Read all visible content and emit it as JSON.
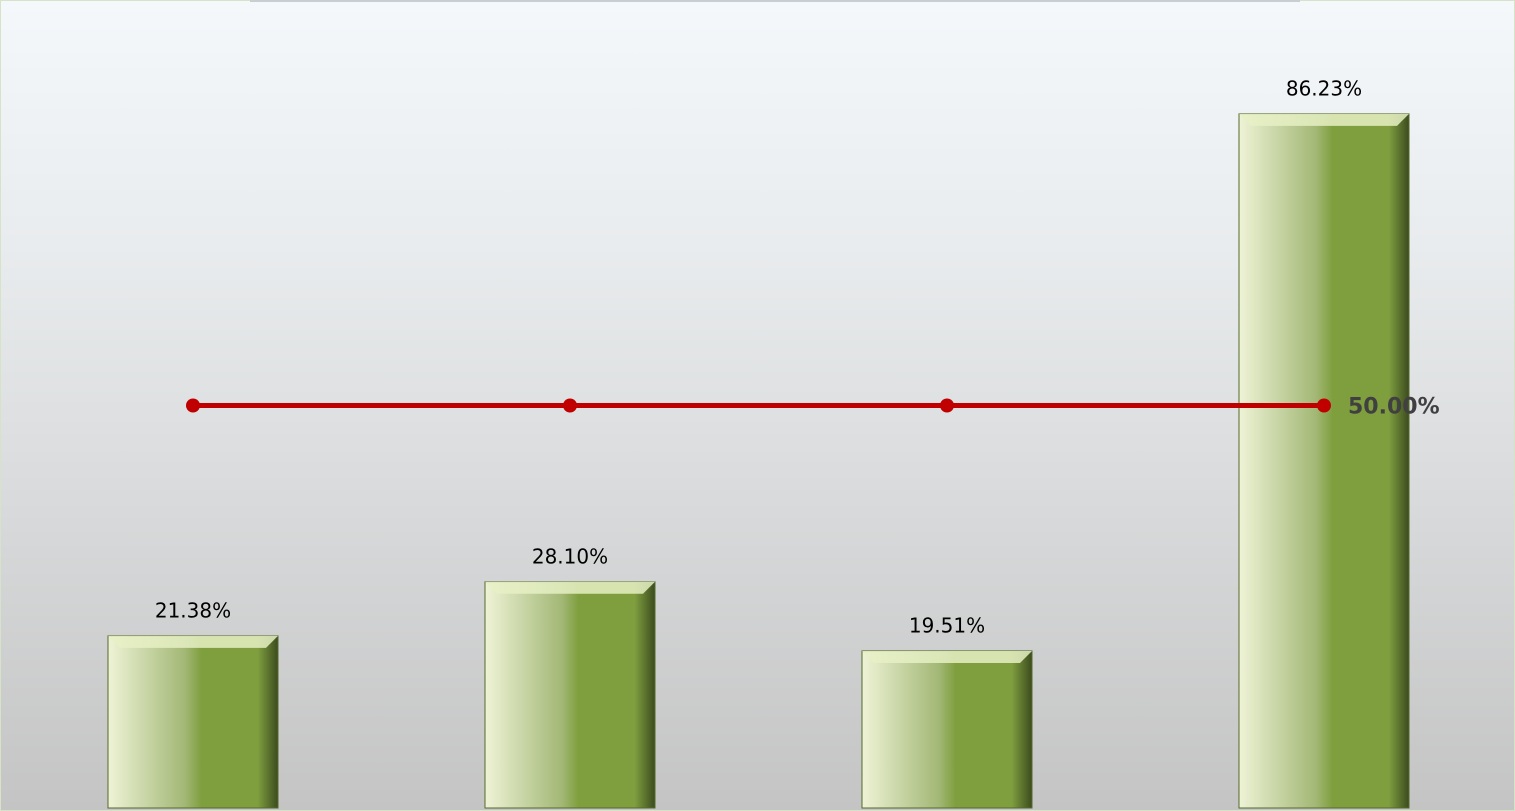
{
  "chart_data": {
    "type": "bar",
    "categories": [
      null,
      null,
      null,
      null
    ],
    "ylim": [
      0,
      100
    ],
    "series": [
      {
        "type": "bar",
        "color": "#7f9f3f",
        "values": [
          21.38,
          28.1,
          19.51,
          86.23
        ],
        "value_labels": [
          "21.38%",
          "28.10%",
          "19.51%",
          "86.23%"
        ]
      },
      {
        "type": "line",
        "color": "#c00000",
        "values": [
          50,
          50,
          50,
          50
        ],
        "value_labels": [
          null,
          null,
          null,
          "50.00%"
        ]
      }
    ]
  }
}
